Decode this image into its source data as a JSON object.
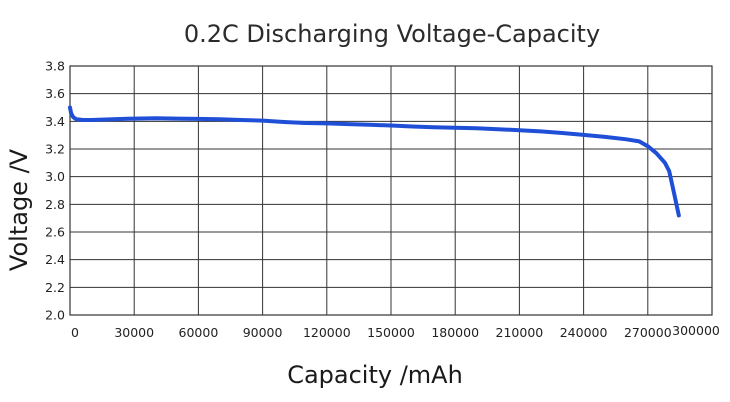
{
  "chart_data": {
    "type": "line",
    "title": "0.2C Discharging Voltage-Capacity",
    "xlabel": "Capacity /mAh",
    "ylabel": "Voltage /V",
    "xlim": [
      0,
      300000
    ],
    "ylim": [
      2.0,
      3.8
    ],
    "x_ticks": [
      "0",
      "30000",
      "60000",
      "90000",
      "120000",
      "150000",
      "180000",
      "210000",
      "240000",
      "270000",
      "300000"
    ],
    "y_ticks": [
      "2.0",
      "2.2",
      "2.4",
      "2.6",
      "2.8",
      "3.0",
      "3.2",
      "3.4",
      "3.6",
      "3.8"
    ],
    "grid": true,
    "legend": "none",
    "series": [
      {
        "color": "#1f4fd6",
        "x": [
          0,
          500,
          1500,
          3000,
          6000,
          10000,
          20000,
          30000,
          40000,
          50000,
          60000,
          70000,
          80000,
          90000,
          100000,
          110000,
          120000,
          130000,
          140000,
          150000,
          160000,
          170000,
          180000,
          190000,
          200000,
          210000,
          220000,
          230000,
          240000,
          250000,
          260000,
          266000,
          270000,
          274000,
          278000,
          280000,
          282000,
          284500
        ],
        "y": [
          3.5,
          3.46,
          3.43,
          3.415,
          3.41,
          3.41,
          3.415,
          3.42,
          3.422,
          3.42,
          3.418,
          3.415,
          3.41,
          3.405,
          3.395,
          3.388,
          3.385,
          3.38,
          3.375,
          3.37,
          3.363,
          3.357,
          3.354,
          3.35,
          3.343,
          3.336,
          3.327,
          3.316,
          3.302,
          3.288,
          3.27,
          3.255,
          3.22,
          3.17,
          3.1,
          3.04,
          2.9,
          2.72
        ]
      }
    ]
  }
}
